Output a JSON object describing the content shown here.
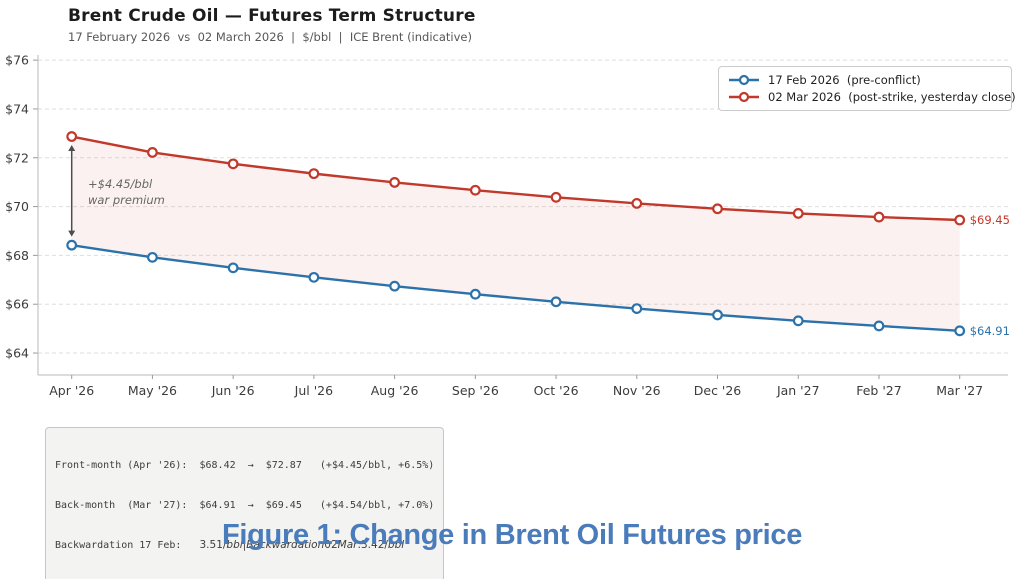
{
  "header": {
    "title": "Brent Crude Oil — Futures Term Structure",
    "subtitle": "17 February 2026  vs  02 March 2026  |  $/bbl  |  ICE Brent (indicative)"
  },
  "chart_data": {
    "type": "line",
    "x_labels": [
      "Apr '26",
      "May '26",
      "Jun '26",
      "Jul '26",
      "Aug '26",
      "Sep '26",
      "Oct '26",
      "Nov '26",
      "Dec '26",
      "Jan '27",
      "Feb '27",
      "Mar '27"
    ],
    "series": [
      {
        "name": "17 Feb 2026  (pre-conflict)",
        "color": "#2b72ab",
        "values": [
          68.42,
          67.92,
          67.49,
          67.1,
          66.74,
          66.41,
          66.1,
          65.82,
          65.56,
          65.32,
          65.11,
          64.91
        ]
      },
      {
        "name": "02 Mar 2026  (post-strike, yesterday close)",
        "color": "#c0392b",
        "values": [
          72.87,
          72.22,
          71.75,
          71.35,
          70.99,
          70.67,
          70.38,
          70.13,
          69.91,
          69.72,
          69.57,
          69.45
        ]
      }
    ],
    "ylim": [
      63.1,
      76.21
    ],
    "yticks": [
      64,
      66,
      68,
      70,
      72,
      74,
      76
    ],
    "ytick_prefix": "$",
    "grid": true,
    "grid_style": "dashed",
    "legend_position": "top-right",
    "fill_between_color": "rgba(197,63,48,0.07)",
    "end_labels": [
      {
        "text": "$64.91",
        "series": 0
      },
      {
        "text": "$69.45",
        "series": 1
      }
    ],
    "annotation": {
      "lines": [
        "+$4.45/bbl",
        "war premium"
      ],
      "arrow": "double-headed vertical between first points",
      "color": "#666666"
    }
  },
  "stats_box": {
    "line1": "Front-month (Apr '26):  $68.42  →  $72.87   (+$4.45/bbl, +6.5%)",
    "line2": "Back-month  (Mar '27):  $64.91  →  $69.45   (+$4.54/bbl, +7.0%)",
    "line3_label": "Backwardation 17 Feb:   ",
    "line3_segments": [
      {
        "t": "3.51/",
        "i": false
      },
      {
        "t": "bbl",
        "i": true
      },
      {
        "t": "|",
        "i": false
      },
      {
        "t": "Backwardation",
        "i": true
      },
      {
        "t": "02",
        "i": false
      },
      {
        "t": "Mar",
        "i": true
      },
      {
        "t": ":",
        "i": false
      },
      {
        "t": "3.42/",
        "i": false
      },
      {
        "t": "bbl",
        "i": true
      }
    ]
  },
  "caption": "Figure 1: Change in Brent Oil Futures price",
  "colors": {
    "pre_conflict_blue": "#2b72ab",
    "post_strike_red": "#c0392b",
    "fill_pink": "rgba(197,63,48,0.07)",
    "caption_blue": "#4a7cbb",
    "grid_gray": "#dedede",
    "spine_gray": "#b9b9b9",
    "annotation_gray": "#666666"
  }
}
